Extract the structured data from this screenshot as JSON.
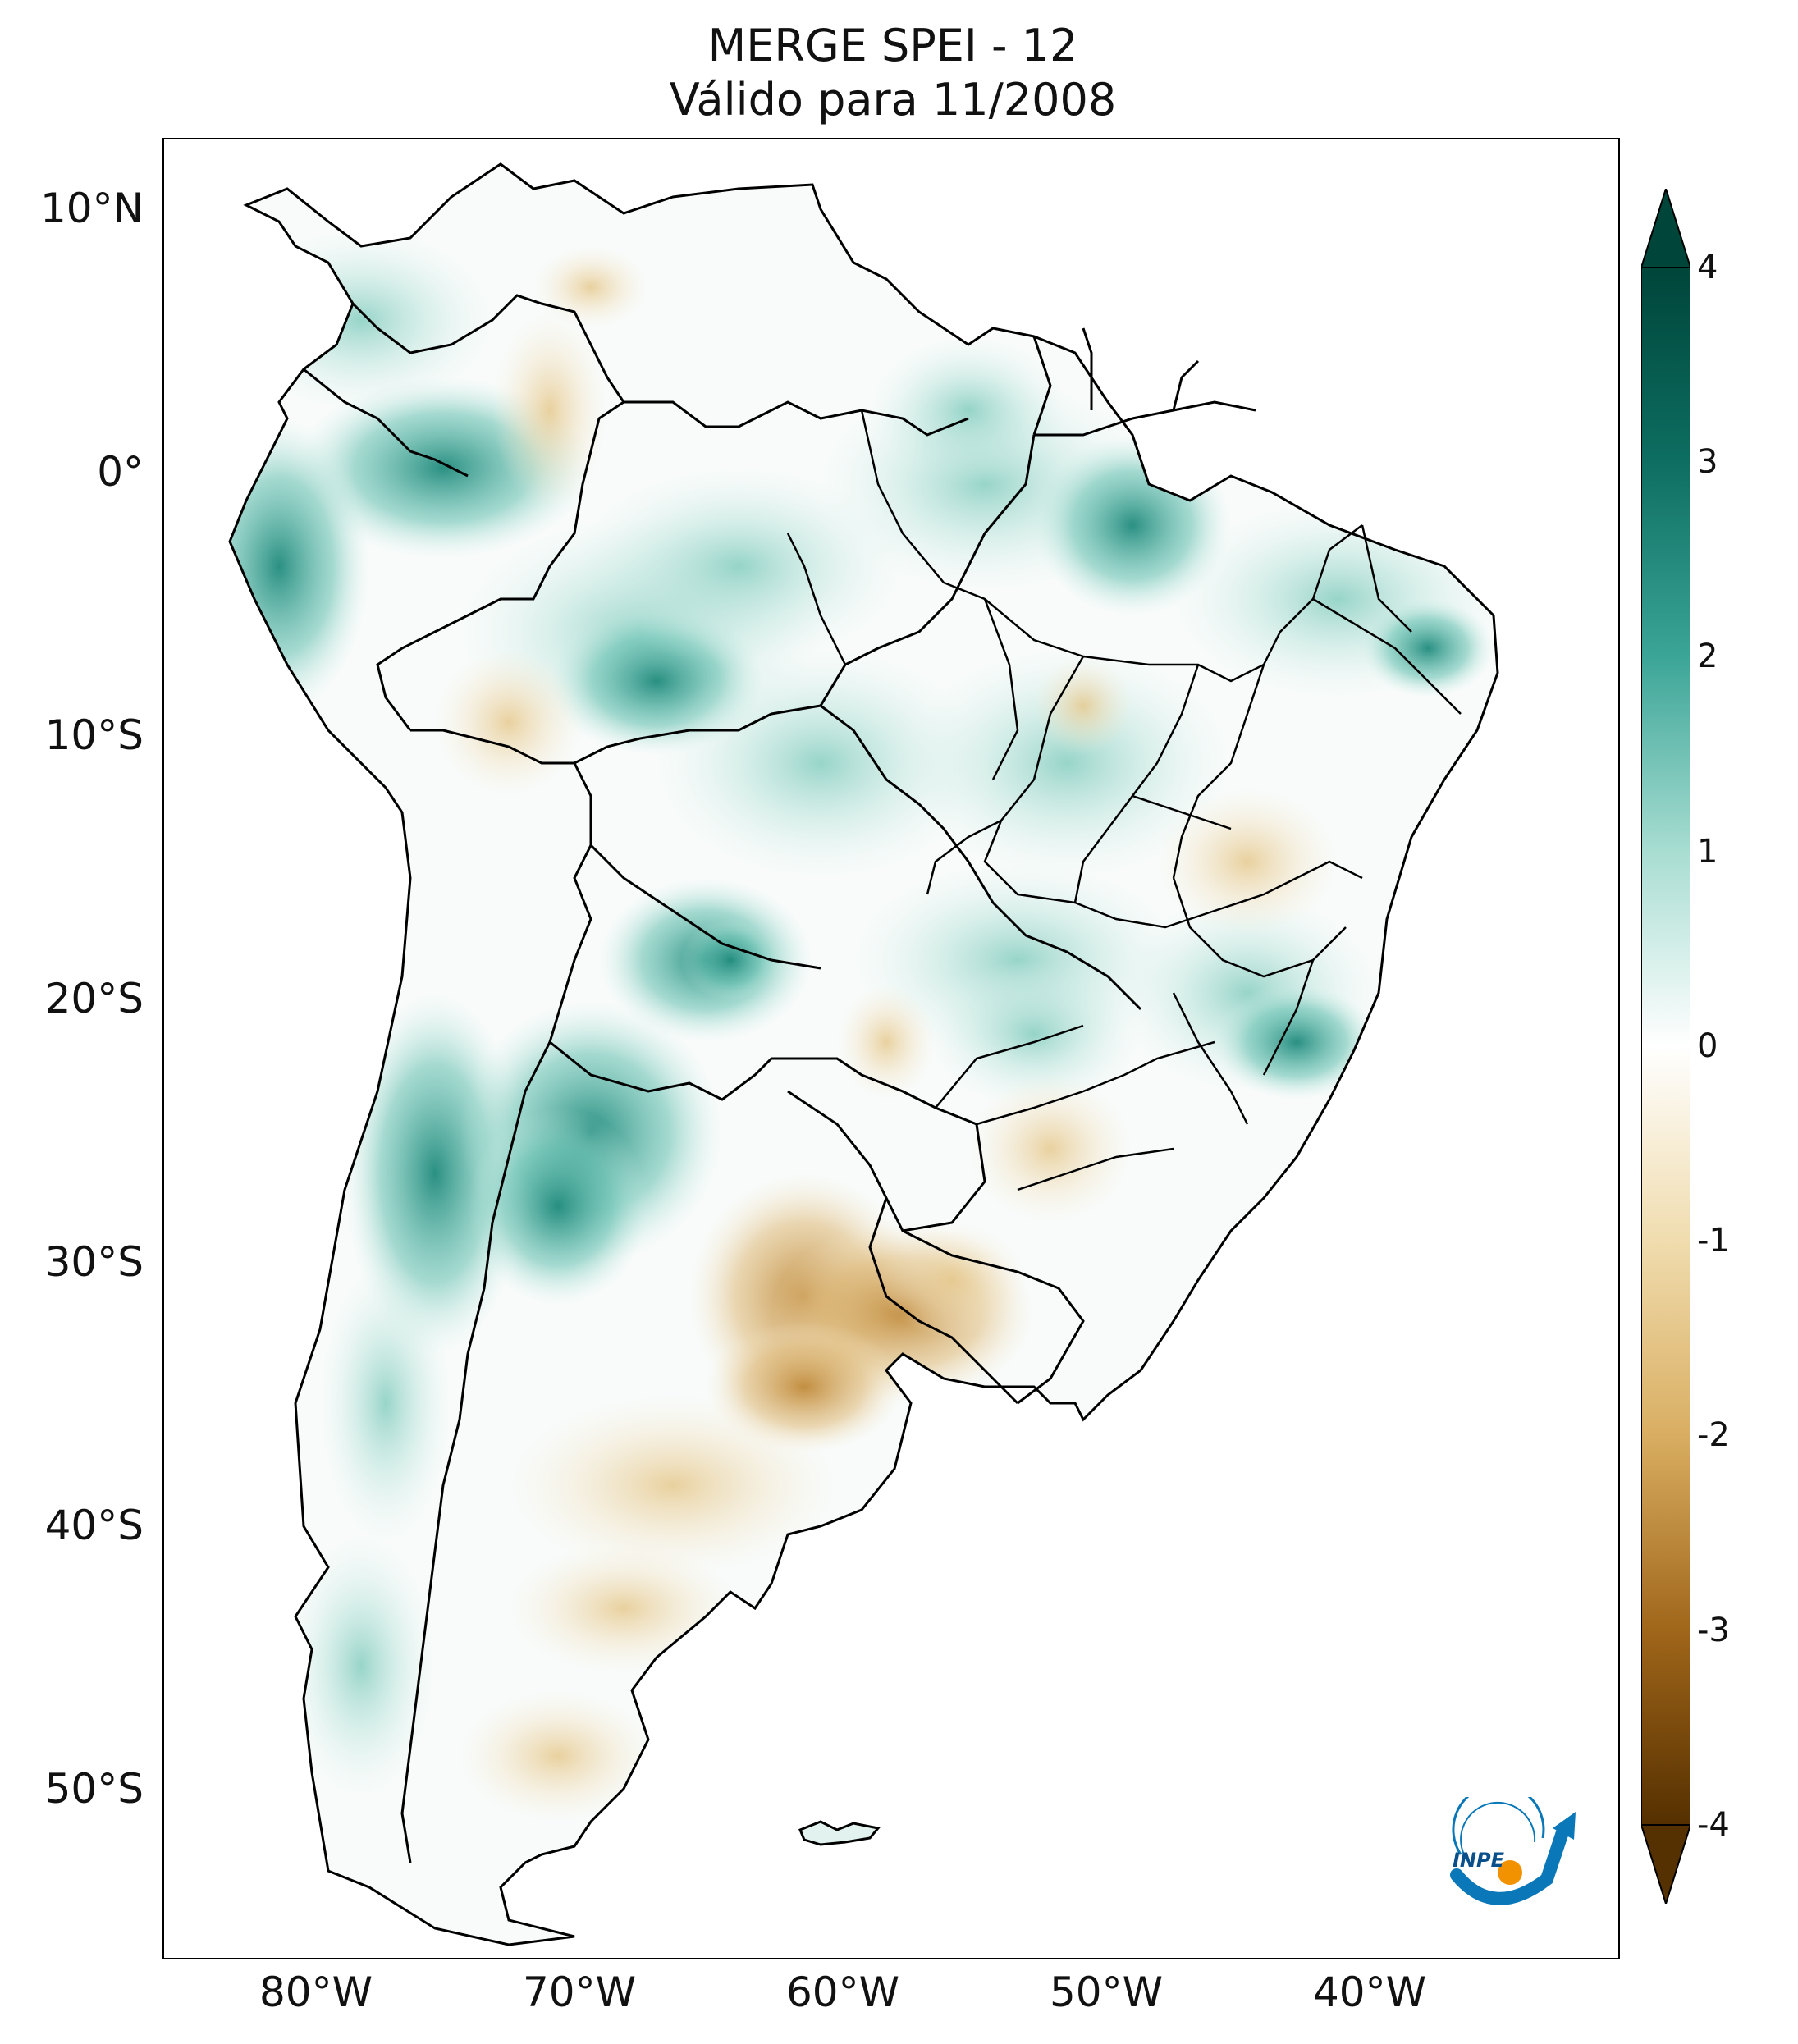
{
  "title": {
    "line1": "MERGE   SPEI - 12",
    "line2": "Válido para 11/2008"
  },
  "latitude_ticks": [
    "10°N",
    "0°",
    "10°S",
    "20°S",
    "30°S",
    "40°S",
    "50°S"
  ],
  "longitude_ticks": [
    "80°W",
    "70°W",
    "60°W",
    "50°W",
    "40°W"
  ],
  "colorbar": {
    "ticks": [
      "4",
      "3",
      "2",
      "1",
      "0",
      "-1",
      "-2",
      "-3",
      "-4"
    ],
    "range": [
      -4,
      4
    ],
    "colors": {
      "wet_max": "#00453a",
      "wet_mid": "#3ba597",
      "wet_low": "#a8ddd2",
      "neutral": "#ffffff",
      "dry_low": "#f0dcae",
      "dry_mid": "#c4933c",
      "dry_max": "#553000"
    }
  },
  "logo": {
    "text": "INPE"
  }
}
